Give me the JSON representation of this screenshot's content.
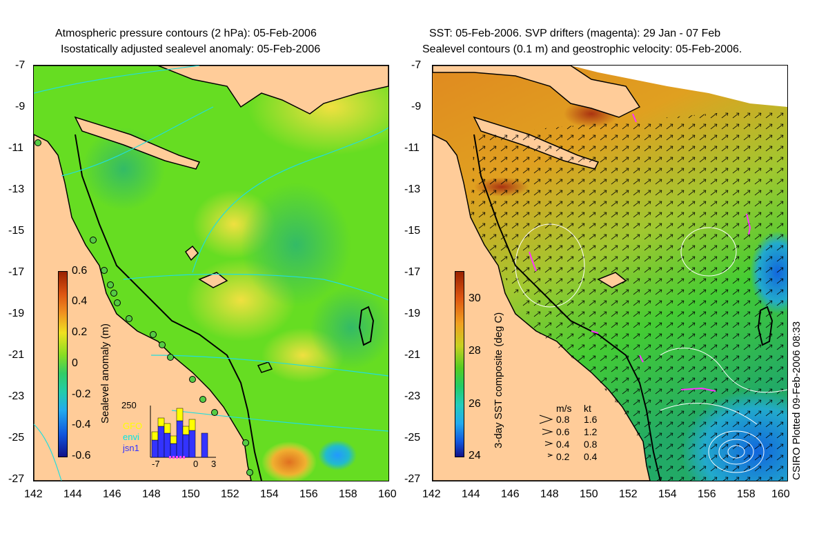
{
  "left_panel": {
    "title_line1": "Atmospheric pressure contours (2 hPa): 05-Feb-2006",
    "title_line2": "Isostatically adjusted sealevel anomaly: 05-Feb-2006",
    "colorbar": {
      "label": "Sealevel anomaly (m)",
      "ticks": [
        "0.6",
        "0.4",
        "0.2",
        "0",
        "-0.2",
        "-0.4",
        "-0.6"
      ]
    },
    "inset": {
      "y_top_label": "250",
      "x_ticks": [
        "-7",
        "0",
        "3"
      ],
      "legend": [
        {
          "name": "GFO",
          "color": "#ffff00"
        },
        {
          "name": "envi",
          "color": "#00e5e5"
        },
        {
          "name": "jsn1",
          "color": "#3333ff"
        }
      ]
    }
  },
  "right_panel": {
    "title_line1": "SST: 05-Feb-2006. SVP drifters (magenta): 29 Jan - 07 Feb",
    "title_line2": "Sealevel contours (0.1 m) and geostrophic velocity: 05-Feb-2006.",
    "colorbar": {
      "label": "3-day SST composite (deg C)",
      "ticks": [
        "30",
        "28",
        "26",
        "24"
      ]
    },
    "speed_legend": {
      "units": [
        "m/s",
        "kt"
      ],
      "rows": [
        {
          "ms": "0.8",
          "kt": "1.6"
        },
        {
          "ms": "0.6",
          "kt": "1.2"
        },
        {
          "ms": "0.4",
          "kt": "0.8"
        },
        {
          "ms": "0.2",
          "kt": "0.4"
        }
      ]
    },
    "credit": "CSIRO Plotted 09-Feb-2006 08:33"
  },
  "axes": {
    "lat_ticks": [
      "-7",
      "-9",
      "-11",
      "-13",
      "-15",
      "-17",
      "-19",
      "-21",
      "-23",
      "-25",
      "-27"
    ],
    "lon_ticks": [
      "142",
      "144",
      "146",
      "148",
      "150",
      "152",
      "154",
      "156",
      "158",
      "160"
    ]
  },
  "colors": {
    "land": "#ffcc99",
    "sla_base": "#66dd22",
    "sst_base": "#e0a020",
    "ocean_green": "#44cc33"
  }
}
